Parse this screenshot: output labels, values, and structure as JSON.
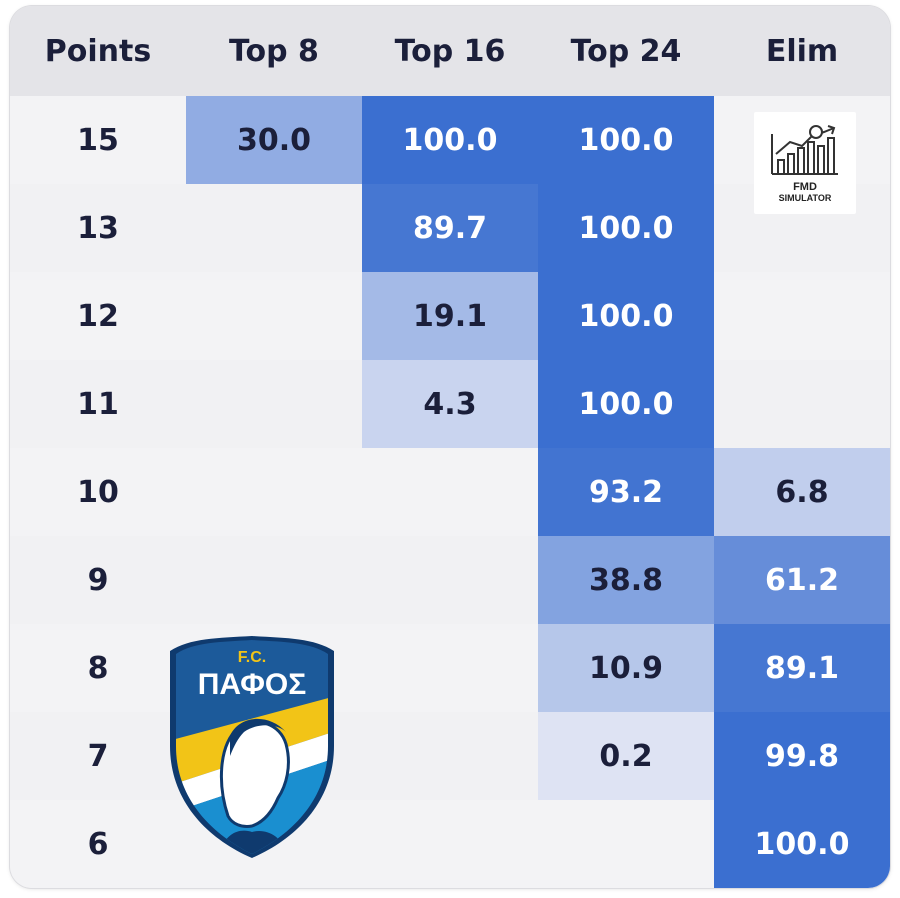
{
  "chart_data": {
    "type": "heatmap",
    "columns": [
      "Points",
      "Top 8",
      "Top 16",
      "Top 24",
      "Elim"
    ],
    "rows": [
      {
        "points": "15",
        "values": [
          "30.0",
          "100.0",
          "100.0",
          ""
        ]
      },
      {
        "points": "13",
        "values": [
          "",
          "89.7",
          "100.0",
          ""
        ]
      },
      {
        "points": "12",
        "values": [
          "",
          "19.1",
          "100.0",
          ""
        ]
      },
      {
        "points": "11",
        "values": [
          "",
          "4.3",
          "100.0",
          ""
        ]
      },
      {
        "points": "10",
        "values": [
          "",
          "",
          "93.2",
          "6.8"
        ]
      },
      {
        "points": "9",
        "values": [
          "",
          "",
          "38.8",
          "61.2"
        ]
      },
      {
        "points": "8",
        "values": [
          "",
          "",
          "10.9",
          "89.1"
        ]
      },
      {
        "points": "7",
        "values": [
          "",
          "",
          "0.2",
          "99.8"
        ]
      },
      {
        "points": "6",
        "values": [
          "",
          "",
          "",
          "100.0"
        ]
      }
    ]
  },
  "logos": {
    "simulator": {
      "name": "fmd-simulator-logo",
      "line1": "FMD",
      "line2": "SIMULATOR"
    },
    "club": {
      "name": "fc-pafos-crest",
      "top_text": "F.C.",
      "name_text": "ΠΑΦΟΣ"
    }
  },
  "colors": {
    "header_bg": "#e4e4e8",
    "body_bg": "#f3f3f5",
    "text_dark": "#1b1f3a",
    "text_light": "#ffffff",
    "scale_low": "#e2e6f4",
    "scale_high": "#3b6fd0"
  }
}
